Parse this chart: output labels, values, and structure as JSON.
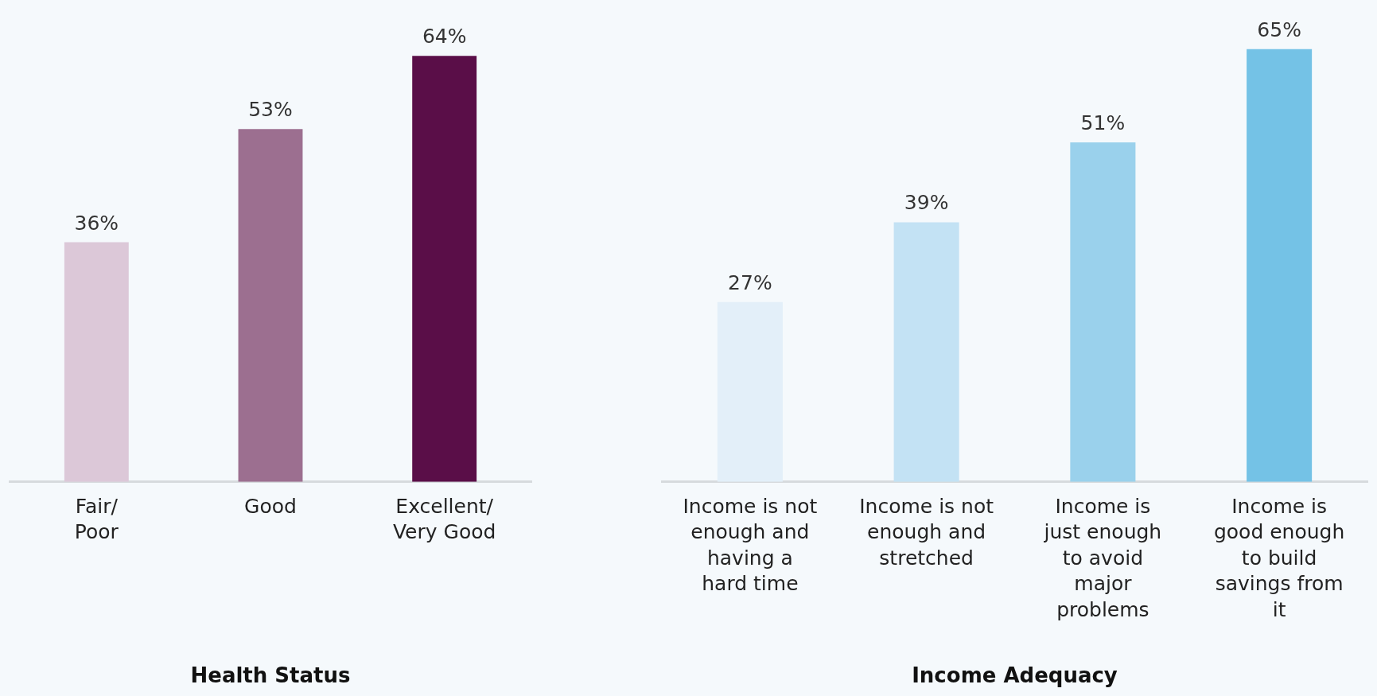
{
  "chart_data": [
    {
      "type": "bar",
      "title": "Health Status",
      "categories": [
        "Fair/ Poor",
        "Good",
        "Excellent/ Very Good"
      ],
      "values": [
        36,
        53,
        64
      ],
      "value_labels": [
        "36%",
        "53%",
        "64%"
      ],
      "colors": [
        "#dcc8d8",
        "#9c6f90",
        "#5a0e48"
      ],
      "tick_labels": "x",
      "grid": false,
      "legend": false
    },
    {
      "type": "bar",
      "title": "Income Adequacy",
      "categories": [
        "Income is not enough and having a hard time",
        "Income is not enough and stretched",
        "Income is just enough to avoid major problems",
        "Income is good enough to build savings from it"
      ],
      "values": [
        27,
        39,
        51,
        65
      ],
      "value_labels": [
        "27%",
        "39%",
        "51%",
        "65%"
      ],
      "colors": [
        "#e3eff9",
        "#c3e2f4",
        "#9ad1ec",
        "#74c2e6"
      ],
      "tick_labels": "x",
      "grid": false,
      "legend": false
    }
  ]
}
